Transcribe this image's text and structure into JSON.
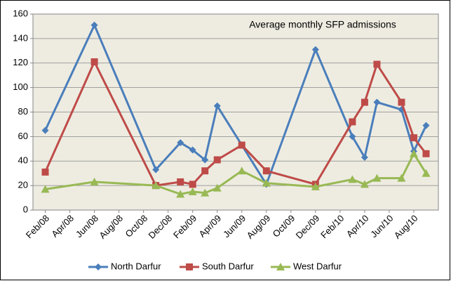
{
  "chart_data": {
    "type": "line",
    "annotation": "Average monthly SFP admissions",
    "x": [
      "2008-02",
      "2008-06",
      "2008-11",
      "2009-01",
      "2009-02",
      "2009-03",
      "2009-04",
      "2009-06",
      "2009-08",
      "2009-12",
      "2010-03",
      "2010-04",
      "2010-05",
      "2010-07",
      "2010-08",
      "2010-09"
    ],
    "series": [
      {
        "name": "North Darfur",
        "color": "#4a7ebb",
        "marker": "diamond",
        "values": [
          65,
          151,
          33,
          55,
          49,
          41,
          85,
          53,
          21,
          131,
          60,
          43,
          88,
          82,
          48,
          69
        ]
      },
      {
        "name": "South Darfur",
        "color": "#be4b48",
        "marker": "square",
        "values": [
          31,
          121,
          20,
          23,
          21,
          32,
          41,
          53,
          32,
          21,
          72,
          88,
          119,
          88,
          59,
          46
        ]
      },
      {
        "name": "West Darfur",
        "color": "#98b954",
        "marker": "triangle",
        "values": [
          17,
          23,
          20,
          13,
          15,
          14,
          18,
          32,
          22,
          19,
          25,
          21,
          26,
          26,
          46,
          30
        ]
      }
    ],
    "xlim": [
      "2008-01",
      "2010-10"
    ],
    "xticks": [
      {
        "value": "2008-02",
        "label": "Feb/08"
      },
      {
        "value": "2008-04",
        "label": "Apr/08"
      },
      {
        "value": "2008-06",
        "label": "Jun/08"
      },
      {
        "value": "2008-08",
        "label": "Aug/08"
      },
      {
        "value": "2008-10",
        "label": "Oct/08"
      },
      {
        "value": "2008-12",
        "label": "Dec/08"
      },
      {
        "value": "2009-02",
        "label": "Feb/09"
      },
      {
        "value": "2009-04",
        "label": "Apr/09"
      },
      {
        "value": "2009-06",
        "label": "Jun/09"
      },
      {
        "value": "2009-08",
        "label": "Aug/09"
      },
      {
        "value": "2009-10",
        "label": "Oct/09"
      },
      {
        "value": "2009-12",
        "label": "Dec/09"
      },
      {
        "value": "2010-02",
        "label": "Feb/10"
      },
      {
        "value": "2010-04",
        "label": "Apr/10"
      },
      {
        "value": "2010-06",
        "label": "Jun/10"
      },
      {
        "value": "2010-08",
        "label": "Aug/10"
      }
    ],
    "ylim": [
      0,
      160
    ],
    "yticks": [
      0,
      20,
      40,
      60,
      80,
      100,
      120,
      140,
      160
    ],
    "grid": true,
    "plot_background": "#eeece1",
    "legend": "bottom"
  }
}
